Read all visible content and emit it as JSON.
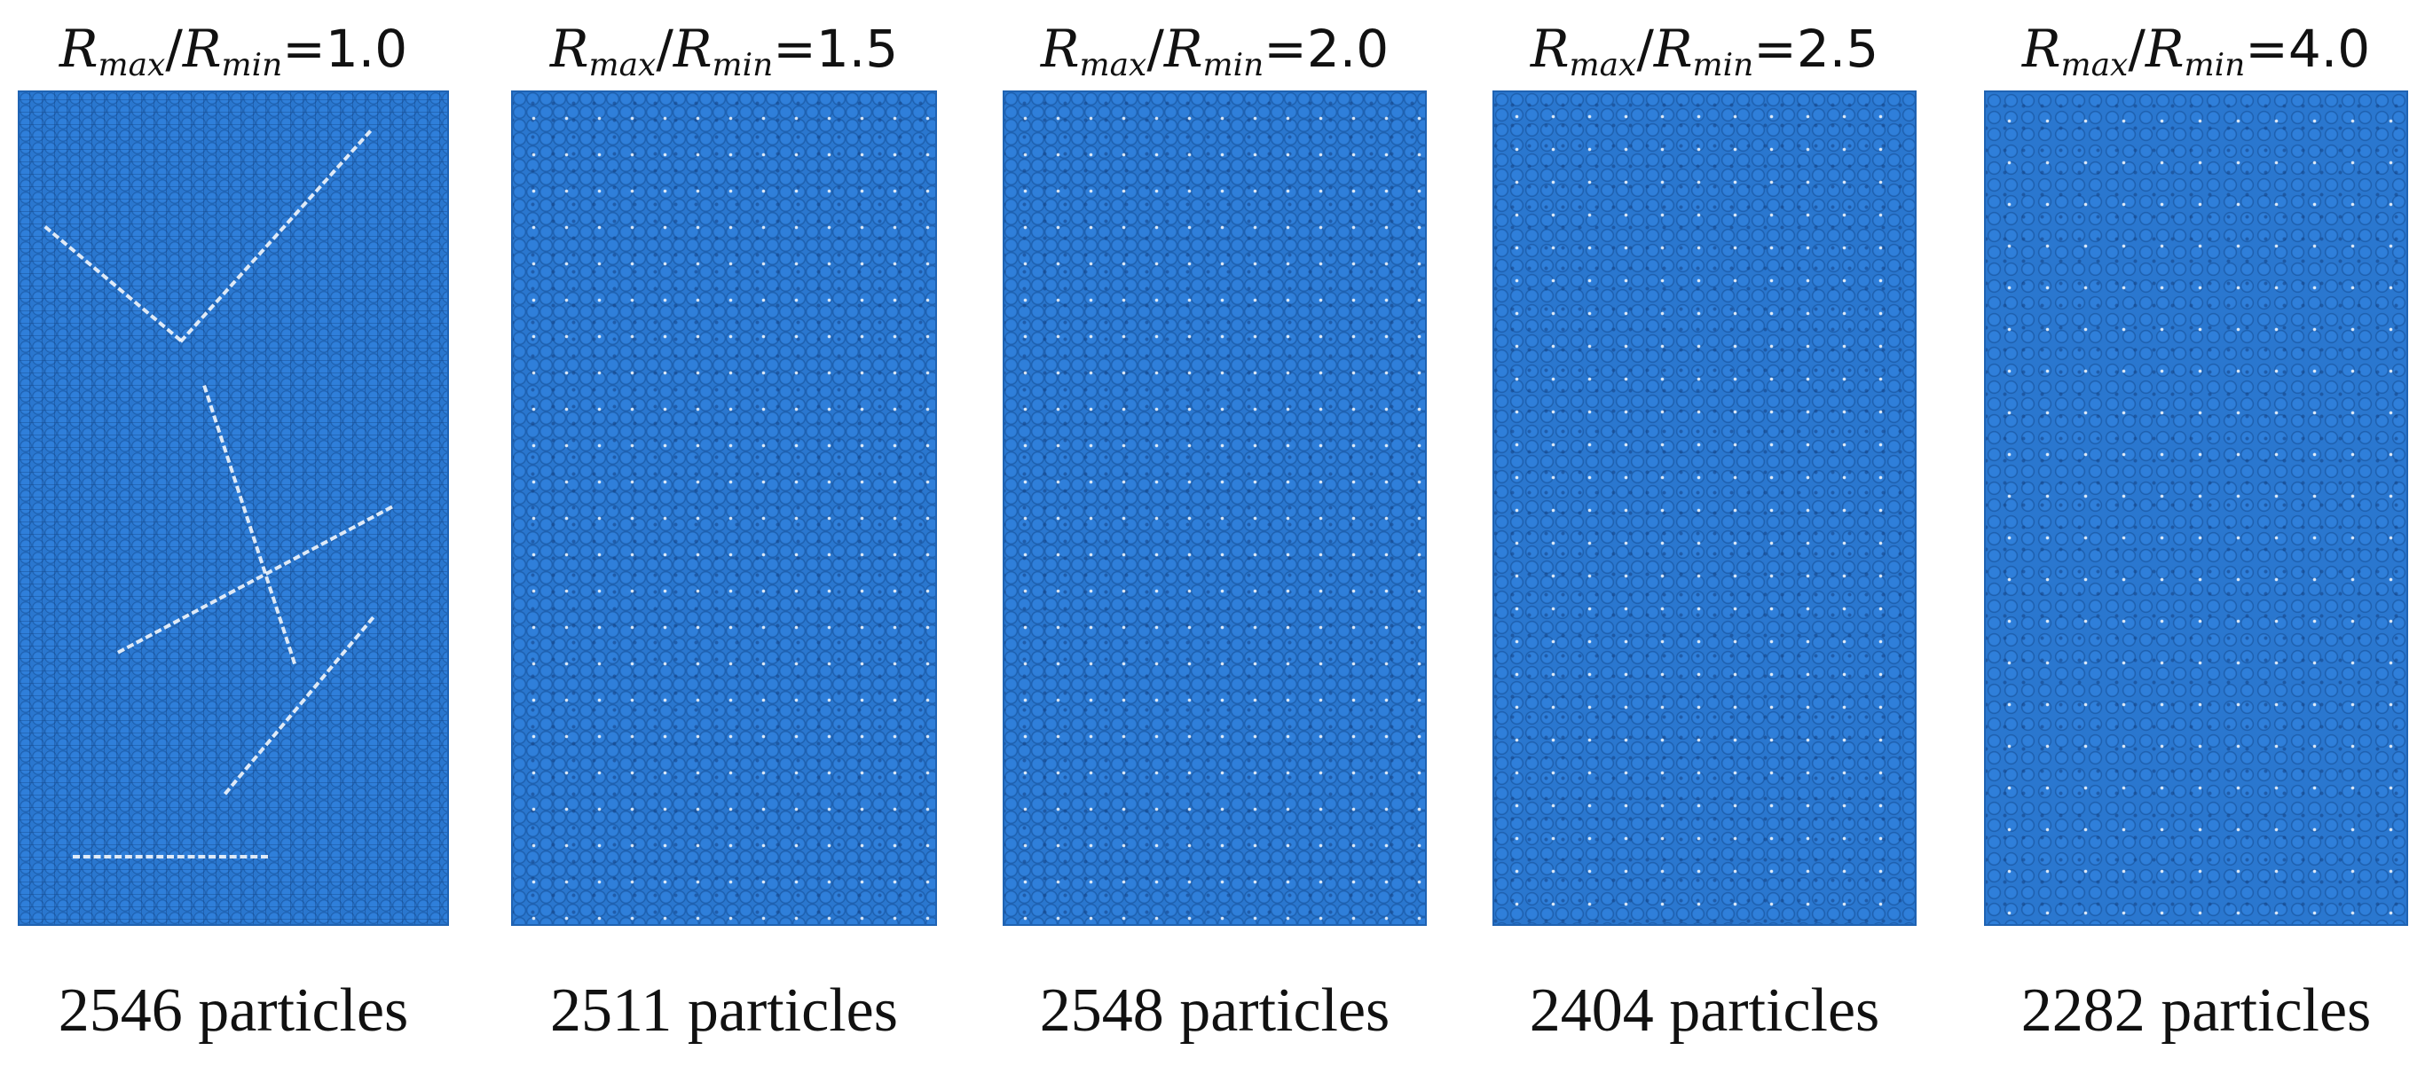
{
  "variable": {
    "symbol": "R",
    "sub_max": "max",
    "sub_min": "min",
    "separator": "/",
    "equals": "="
  },
  "colors": {
    "particle_fill": "#2a77cf",
    "particle_edge": "#1b5aa6",
    "void": "#ffffff"
  },
  "panels": [
    {
      "ratio": "1.0",
      "caption": "2546 particles"
    },
    {
      "ratio": "1.5",
      "caption": "2511 particles"
    },
    {
      "ratio": "2.0",
      "caption": "2548 particles"
    },
    {
      "ratio": "2.5",
      "caption": "2404 particles"
    },
    {
      "ratio": "4.0",
      "caption": "2282 particles"
    }
  ]
}
